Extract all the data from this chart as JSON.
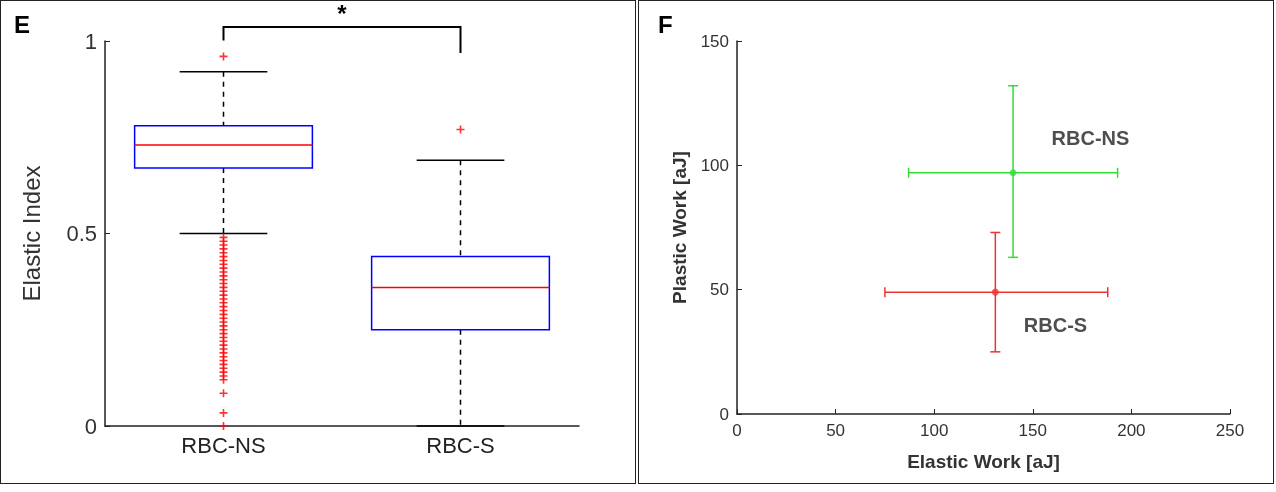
{
  "chart_data": [
    {
      "type": "box",
      "title": "E",
      "ylabel": "Elastic Index",
      "categories": [
        "RBC-NS",
        "RBC-S"
      ],
      "ylim": [
        0,
        1
      ],
      "yticks": [
        0,
        0.5,
        1
      ],
      "grid": false,
      "legend": false,
      "boxes": [
        {
          "low": 0.5,
          "q1": 0.67,
          "median": 0.73,
          "q3": 0.78,
          "high": 0.92,
          "outliers": [
            0.96,
            0.49,
            0.48,
            0.47,
            0.46,
            0.45,
            0.44,
            0.43,
            0.42,
            0.41,
            0.4,
            0.39,
            0.38,
            0.37,
            0.36,
            0.35,
            0.34,
            0.33,
            0.32,
            0.31,
            0.3,
            0.29,
            0.28,
            0.27,
            0.26,
            0.25,
            0.24,
            0.23,
            0.22,
            0.21,
            0.2,
            0.19,
            0.18,
            0.17,
            0.16,
            0.15,
            0.14,
            0.13,
            0.12,
            0.085,
            0.034,
            0
          ]
        },
        {
          "low": 0,
          "q1": 0.25,
          "median": 0.36,
          "q3": 0.44,
          "high": 0.69,
          "outliers": [
            0.77
          ]
        }
      ],
      "annotations": [
        "*"
      ]
    },
    {
      "type": "scatter",
      "title": "F",
      "xlabel": "Elastic Work [aJ]",
      "ylabel": "Plastic Work [aJ]",
      "xlim": [
        0,
        250
      ],
      "xticks": [
        0,
        50,
        100,
        150,
        200,
        250
      ],
      "ylim": [
        0,
        150
      ],
      "yticks": [
        0,
        50,
        100,
        150
      ],
      "grid": false,
      "legend": false,
      "marker": "circle",
      "series": [
        {
          "name": "RBC-NS",
          "color": "#33dd33",
          "x": [
            140
          ],
          "values": [
            97
          ],
          "errors": [
            [
              63,
              132
            ]
          ],
          "xerrors": [
            [
              87,
              193
            ]
          ]
        },
        {
          "name": "RBC-S",
          "color": "#ee3333",
          "x": [
            131
          ],
          "values": [
            49
          ],
          "errors": [
            [
              25,
              73
            ]
          ],
          "xerrors": [
            [
              75,
              188
            ]
          ]
        }
      ]
    }
  ]
}
